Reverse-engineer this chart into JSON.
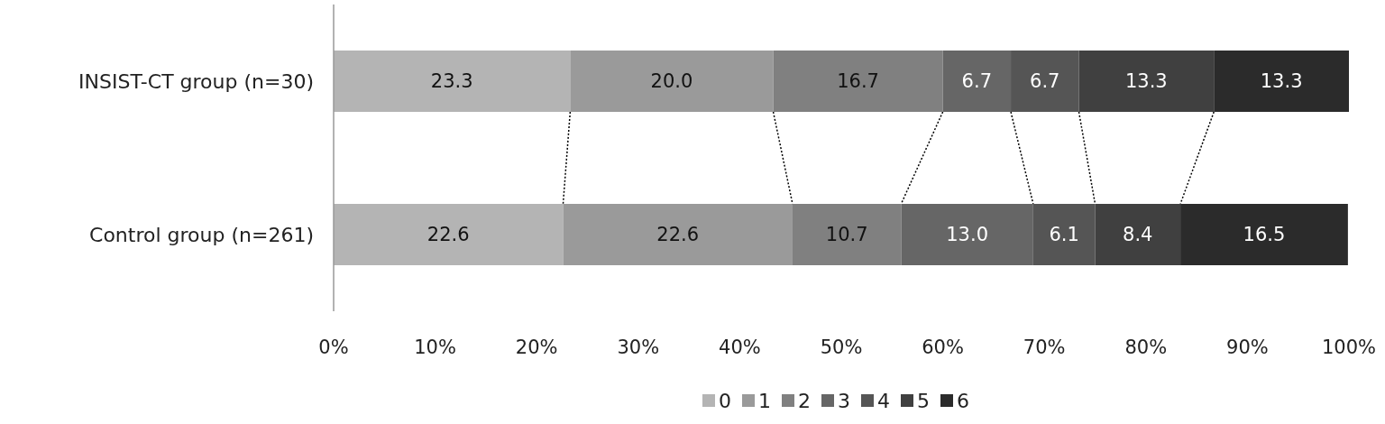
{
  "chart_data": {
    "type": "bar",
    "orientation": "horizontal",
    "stacked": true,
    "categories": [
      "INSIST-CT group (n=30)",
      "Control group (n=261)"
    ],
    "series": [
      {
        "name": "0",
        "color": "#b4b4b4",
        "values": [
          23.3,
          22.6
        ],
        "value_labels": [
          "23.3",
          "22.6"
        ]
      },
      {
        "name": "1",
        "color": "#9a9a9a",
        "values": [
          20.0,
          22.6
        ],
        "value_labels": [
          "20.0",
          "22.6"
        ]
      },
      {
        "name": "2",
        "color": "#808080",
        "values": [
          16.7,
          10.7
        ],
        "value_labels": [
          "16.7",
          "10.7"
        ]
      },
      {
        "name": "3",
        "color": "#666666",
        "values": [
          6.7,
          13.0
        ],
        "value_labels": [
          "6.7",
          "13.0"
        ]
      },
      {
        "name": "4",
        "color": "#555555",
        "values": [
          6.7,
          6.1
        ],
        "value_labels": [
          "6.7",
          "6.1"
        ]
      },
      {
        "name": "5",
        "color": "#404040",
        "values": [
          13.3,
          8.4
        ],
        "value_labels": [
          "13.3",
          "8.4"
        ]
      },
      {
        "name": "6",
        "color": "#2b2b2b",
        "values": [
          13.3,
          16.5
        ],
        "value_labels": [
          "13.3",
          "16.5"
        ]
      }
    ],
    "xlim": [
      0,
      100
    ],
    "xticks": [
      {
        "value": 0,
        "label": "0%"
      },
      {
        "value": 10,
        "label": "10%"
      },
      {
        "value": 20,
        "label": "20%"
      },
      {
        "value": 30,
        "label": "30%"
      },
      {
        "value": 40,
        "label": "40%"
      },
      {
        "value": 50,
        "label": "50%"
      },
      {
        "value": 60,
        "label": "60%"
      },
      {
        "value": 70,
        "label": "70%"
      },
      {
        "value": 80,
        "label": "80%"
      },
      {
        "value": 90,
        "label": "90%"
      },
      {
        "value": 100,
        "label": "100%"
      }
    ],
    "legend": "bottom",
    "grid": false
  }
}
